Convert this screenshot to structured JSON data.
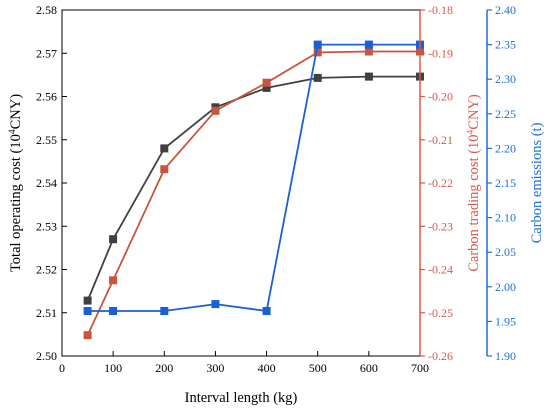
{
  "chart_data": {
    "type": "line",
    "x": [
      50,
      100,
      200,
      300,
      400,
      500,
      600,
      700
    ],
    "xlabel": "Interval length (kg)",
    "xlim": [
      0,
      700
    ],
    "xticks": [
      0,
      100,
      200,
      300,
      400,
      500,
      600,
      700
    ],
    "axes": {
      "left": {
        "label_main": "Total operating cost (10",
        "label_sup": "4",
        "label_end": "CNY)",
        "lim": [
          2.5,
          2.58
        ],
        "ticks": [
          "2.50",
          "2.51",
          "2.52",
          "2.53",
          "2.54",
          "2.55",
          "2.56",
          "2.57",
          "2.58"
        ],
        "color": "#000000"
      },
      "right1": {
        "label_main": "Carbon trading cost (10",
        "label_sup": "4",
        "label_end": "CNY)",
        "lim": [
          -0.26,
          -0.18
        ],
        "ticks": [
          "-0.26",
          "-0.25",
          "-0.24",
          "-0.23",
          "-0.22",
          "-0.21",
          "-0.20",
          "-0.19",
          "-0.18"
        ],
        "color": "#d8584a"
      },
      "right2": {
        "label": "Carbon emissions (t)",
        "lim": [
          1.9,
          2.4
        ],
        "ticks": [
          "1.90",
          "1.95",
          "2.00",
          "2.05",
          "2.10",
          "2.15",
          "2.20",
          "2.25",
          "2.30",
          "2.35",
          "2.40"
        ],
        "color": "#1e6fd9"
      }
    },
    "series": [
      {
        "axis": "left",
        "color": "#404040",
        "values": [
          2.5128,
          2.527,
          2.548,
          2.5575,
          2.562,
          2.5643,
          2.5646,
          2.5646
        ]
      },
      {
        "axis": "right1",
        "color": "#c8553d",
        "values": [
          -0.2552,
          -0.2425,
          -0.2168,
          -0.2033,
          -0.1968,
          -0.1898,
          -0.1896,
          -0.1896
        ]
      },
      {
        "axis": "right2",
        "color": "#1b5fd6",
        "values": [
          1.965,
          1.965,
          1.965,
          1.975,
          1.965,
          2.35,
          2.35,
          2.35
        ]
      }
    ],
    "grid": false,
    "legend": "none"
  }
}
